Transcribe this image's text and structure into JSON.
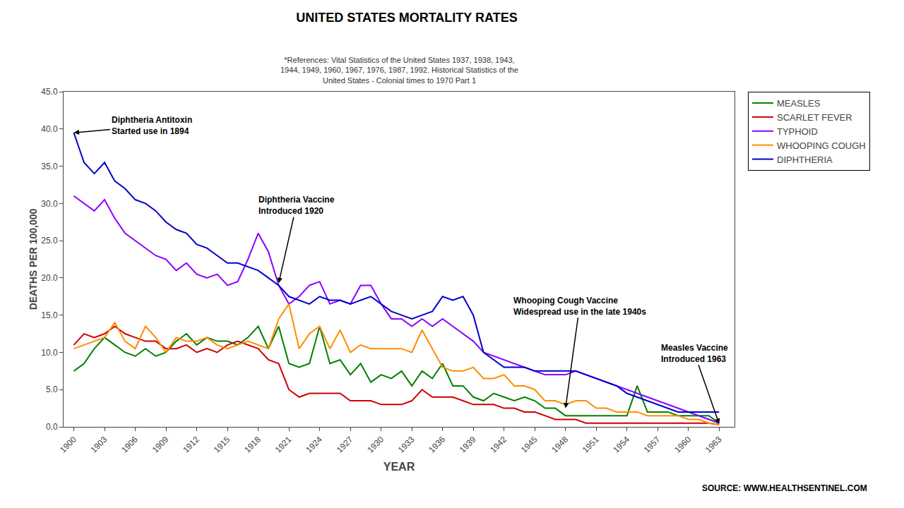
{
  "chart_data": {
    "type": "line",
    "title": "UNITED STATES MORTALITY RATES",
    "subtitle": "*References: Vital Statistics of the United States 1937, 1938, 1943,\n1944, 1949, 1960, 1967, 1976, 1987, 1992. Historical Statistics of the\nUnited States - Colonial times to 1970 Part 1",
    "xlabel": "YEAR",
    "ylabel": "DEATHS PER 100,000",
    "source": "SOURCE: WWW.HEALTHSENTINEL.COM",
    "x": [
      1900,
      1901,
      1902,
      1903,
      1904,
      1905,
      1906,
      1907,
      1908,
      1909,
      1910,
      1911,
      1912,
      1913,
      1914,
      1915,
      1916,
      1917,
      1918,
      1919,
      1920,
      1921,
      1922,
      1923,
      1924,
      1925,
      1926,
      1927,
      1928,
      1929,
      1930,
      1931,
      1932,
      1933,
      1934,
      1935,
      1936,
      1937,
      1938,
      1939,
      1940,
      1941,
      1942,
      1943,
      1944,
      1945,
      1946,
      1947,
      1948,
      1949,
      1950,
      1951,
      1952,
      1953,
      1954,
      1955,
      1956,
      1957,
      1958,
      1959,
      1960,
      1961,
      1962,
      1963
    ],
    "series": [
      {
        "name": "MEASLES",
        "color": "#008000",
        "values": [
          7.5,
          8.5,
          10.5,
          12.0,
          11.0,
          10.0,
          9.5,
          10.5,
          9.5,
          10.0,
          11.5,
          12.5,
          11.0,
          12.0,
          11.5,
          11.5,
          11.0,
          12.0,
          13.5,
          10.5,
          13.5,
          8.5,
          8.0,
          8.5,
          13.5,
          8.5,
          9.0,
          7.0,
          8.5,
          6.0,
          7.0,
          6.5,
          7.5,
          5.5,
          7.5,
          6.5,
          8.5,
          5.5,
          5.5,
          4.0,
          3.5,
          4.5,
          4.0,
          3.5,
          4.0,
          3.5,
          2.5,
          2.5,
          1.5,
          1.5,
          1.5,
          1.5,
          1.5,
          1.5,
          1.5,
          5.5,
          2.0,
          2.0,
          2.0,
          1.5,
          1.5,
          1.5,
          1.5,
          0.5
        ]
      },
      {
        "name": "SCARLET FEVER",
        "color": "#CC0000",
        "values": [
          11.0,
          12.5,
          12.0,
          12.5,
          13.5,
          12.5,
          12.0,
          11.5,
          11.5,
          10.5,
          10.5,
          11.0,
          10.0,
          10.5,
          10.0,
          11.0,
          11.5,
          11.0,
          10.5,
          9.0,
          8.5,
          5.0,
          4.0,
          4.5,
          4.5,
          4.5,
          4.5,
          3.5,
          3.5,
          3.5,
          3.0,
          3.0,
          3.0,
          3.5,
          5.0,
          4.0,
          4.0,
          4.0,
          3.5,
          3.0,
          3.0,
          3.0,
          2.5,
          2.5,
          2.0,
          2.0,
          1.5,
          1.0,
          1.0,
          1.0,
          0.5,
          0.5,
          0.5,
          0.5,
          0.5,
          0.5,
          0.5,
          0.5,
          0.5,
          0.5,
          0.5,
          0.5,
          0.5,
          0.3
        ]
      },
      {
        "name": "TYPHOID",
        "color": "#8B00FF",
        "values": [
          31.0,
          30.0,
          29.0,
          30.5,
          28.0,
          26.0,
          25.0,
          24.0,
          23.0,
          22.5,
          21.0,
          22.0,
          20.5,
          20.0,
          20.5,
          19.0,
          19.5,
          22.5,
          26.0,
          23.5,
          19.0,
          16.5,
          17.5,
          19.0,
          19.5,
          16.5,
          17.0,
          16.5,
          19.0,
          19.0,
          16.5,
          14.5,
          14.5,
          13.5,
          14.5,
          13.5,
          14.5,
          13.5,
          12.5,
          11.5,
          10.0,
          9.5,
          9.0,
          8.5,
          8.0,
          7.5,
          7.0,
          7.0,
          7.0,
          7.5,
          7.0,
          6.5,
          6.0,
          5.5,
          5.0,
          4.5,
          4.0,
          3.5,
          3.0,
          2.5,
          2.0,
          1.5,
          1.0,
          0.5
        ]
      },
      {
        "name": "WHOOPING COUGH",
        "color": "#FF8C00",
        "values": [
          10.5,
          11.0,
          11.5,
          12.0,
          14.0,
          11.5,
          10.5,
          13.5,
          12.0,
          10.0,
          12.0,
          11.5,
          11.5,
          12.0,
          11.0,
          10.5,
          11.0,
          11.5,
          11.0,
          10.5,
          14.5,
          16.5,
          10.5,
          12.5,
          13.5,
          10.5,
          13.0,
          10.0,
          11.0,
          10.5,
          10.5,
          10.5,
          10.5,
          10.0,
          13.0,
          10.5,
          8.0,
          7.5,
          7.5,
          8.0,
          6.5,
          6.5,
          7.0,
          5.5,
          5.5,
          5.0,
          3.5,
          3.5,
          3.0,
          3.5,
          3.5,
          2.5,
          2.5,
          2.0,
          2.0,
          2.0,
          1.5,
          1.5,
          1.5,
          1.5,
          1.0,
          1.0,
          0.5,
          0.3
        ]
      },
      {
        "name": "DIPHTHERIA",
        "color": "#0000CC",
        "values": [
          39.5,
          35.5,
          34.0,
          35.5,
          33.0,
          32.0,
          30.5,
          30.0,
          29.0,
          27.5,
          26.5,
          26.0,
          24.5,
          24.0,
          23.0,
          22.0,
          22.0,
          21.5,
          21.0,
          20.0,
          19.0,
          17.5,
          17.0,
          16.5,
          17.5,
          17.0,
          17.0,
          16.5,
          17.0,
          17.5,
          16.5,
          15.5,
          15.0,
          14.5,
          15.0,
          15.5,
          17.5,
          17.0,
          17.5,
          15.0,
          10.0,
          9.0,
          8.0,
          8.0,
          8.0,
          7.5,
          7.5,
          7.5,
          7.5,
          7.5,
          7.0,
          6.5,
          6.0,
          5.5,
          4.5,
          4.0,
          3.5,
          3.0,
          2.5,
          2.0,
          2.0,
          2.0,
          2.0,
          2.0
        ]
      }
    ],
    "xlim": [
      1899.0,
      1964.5
    ],
    "xticks": [
      1900,
      1903,
      1906,
      1909,
      1912,
      1915,
      1918,
      1921,
      1924,
      1927,
      1930,
      1933,
      1936,
      1939,
      1942,
      1945,
      1948,
      1951,
      1954,
      1957,
      1960,
      1963
    ],
    "ylim": [
      0.0,
      45.0
    ],
    "yticks": [
      {
        "value": 0.0,
        "label": "0.0"
      },
      {
        "value": 5.0,
        "label": "5.0"
      },
      {
        "value": 10.0,
        "label": "10.0"
      },
      {
        "value": 15.0,
        "label": "15.0"
      },
      {
        "value": 20.0,
        "label": "20.0"
      },
      {
        "value": 25.0,
        "label": "25.0"
      },
      {
        "value": 30.0,
        "label": "30.0"
      },
      {
        "value": 35.0,
        "label": "35.0"
      },
      {
        "value": 40.0,
        "label": "40.0"
      },
      {
        "value": 45.0,
        "label": "45.0"
      }
    ],
    "annotations": [
      {
        "text": "Diphtheria Antitoxin\nStarted use in 1894",
        "x": 1900,
        "y": 39.5
      },
      {
        "text": "Diphtheria Vaccine\nIntroduced 1920",
        "x": 1920,
        "y": 19.3
      },
      {
        "text": "Whooping Cough Vaccine\nWidespread use in the late 1940s",
        "x": 1948,
        "y": 2.5
      },
      {
        "text": "Measles Vaccine\nIntroduced 1963",
        "x": 1963,
        "y": 0.4
      }
    ],
    "grid": false,
    "legend": "upper right"
  }
}
